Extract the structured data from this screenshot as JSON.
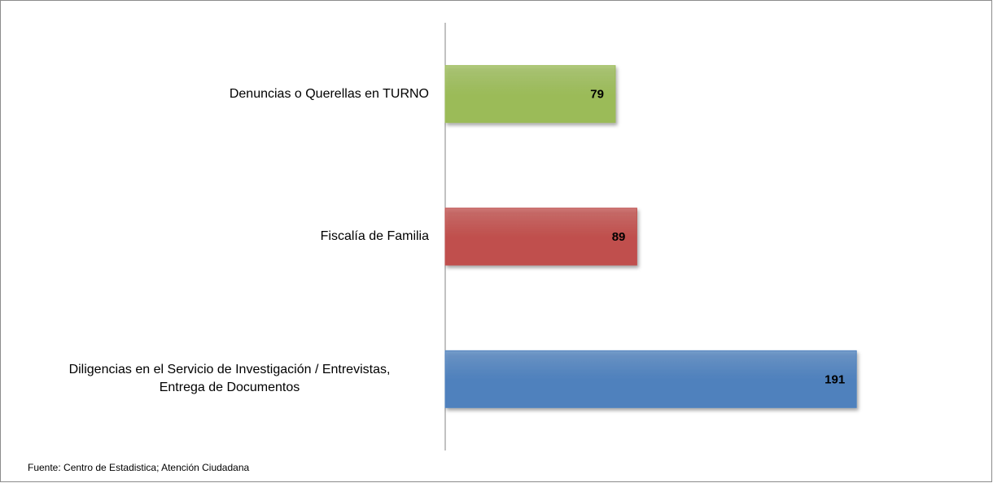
{
  "chart_data": {
    "type": "bar",
    "orientation": "horizontal",
    "categories": [
      "Denuncias o Querellas en TURNO",
      "Fiscalía de Familia",
      "Diligencias en el Servicio de Investigación / Entrevistas,\nEntrega de Documentos"
    ],
    "values": [
      79,
      89,
      191
    ],
    "colors": [
      "#9bbb59",
      "#c0504d",
      "#4f81bd"
    ],
    "source": "Fuente: Centro de Estadistica; Atención Ciudadana"
  }
}
